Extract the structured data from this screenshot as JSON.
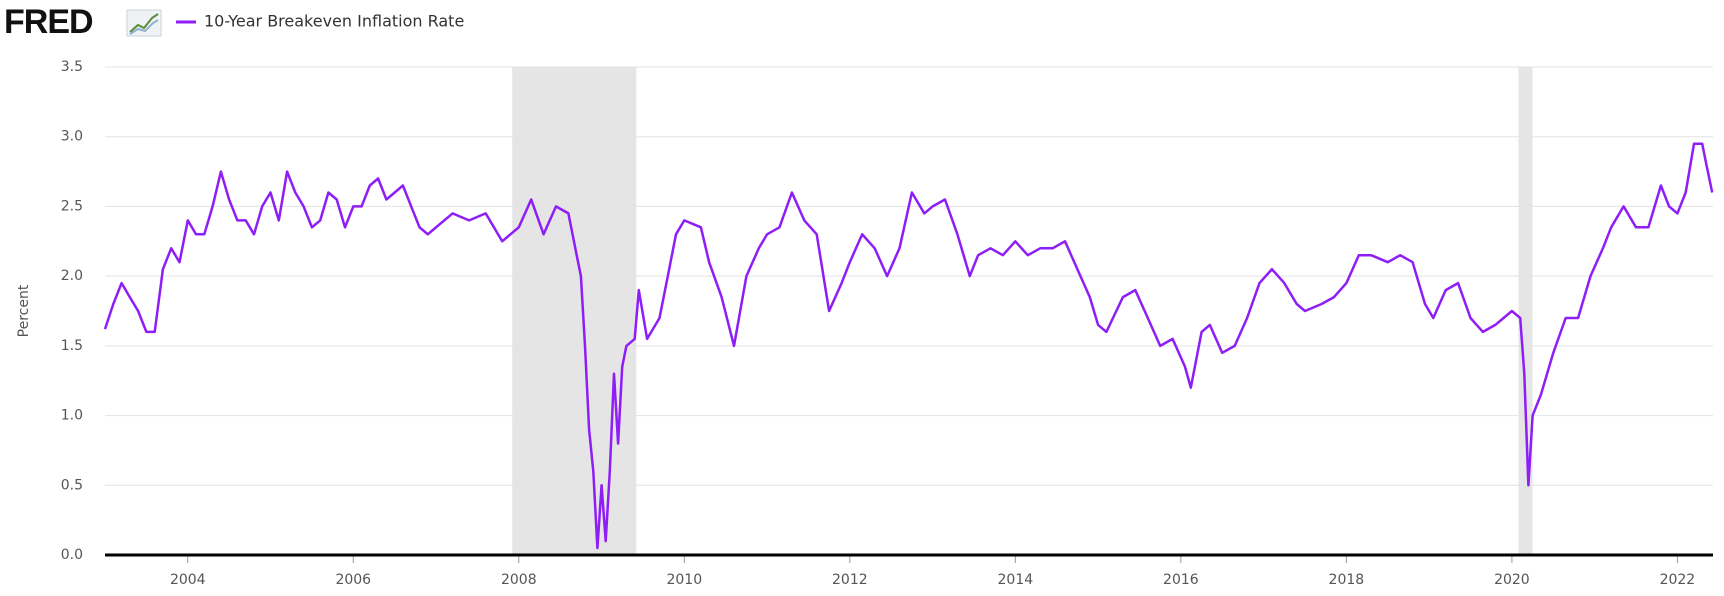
{
  "chart_data": {
    "type": "line",
    "source_logo": "FRED",
    "ylabel": "Percent",
    "x": [
      2003.0,
      2003.1,
      2003.2,
      2003.3,
      2003.4,
      2003.5,
      2003.6,
      2003.7,
      2003.8,
      2003.9,
      2004.0,
      2004.1,
      2004.2,
      2004.3,
      2004.4,
      2004.5,
      2004.6,
      2004.7,
      2004.8,
      2004.9,
      2005.0,
      2005.1,
      2005.2,
      2005.3,
      2005.4,
      2005.5,
      2005.6,
      2005.7,
      2005.8,
      2005.9,
      2006.0,
      2006.1,
      2006.2,
      2006.3,
      2006.4,
      2006.5,
      2006.6,
      2006.7,
      2006.8,
      2006.9,
      2007.0,
      2007.2,
      2007.4,
      2007.6,
      2007.8,
      2008.0,
      2008.15,
      2008.3,
      2008.45,
      2008.6,
      2008.7,
      2008.75,
      2008.8,
      2008.85,
      2008.9,
      2008.95,
      2009.0,
      2009.05,
      2009.1,
      2009.15,
      2009.2,
      2009.25,
      2009.3,
      2009.4,
      2009.45,
      2009.55,
      2009.7,
      2009.8,
      2009.9,
      2010.0,
      2010.2,
      2010.3,
      2010.45,
      2010.6,
      2010.75,
      2010.9,
      2011.0,
      2011.15,
      2011.3,
      2011.45,
      2011.6,
      2011.75,
      2011.9,
      2012.0,
      2012.15,
      2012.3,
      2012.45,
      2012.6,
      2012.75,
      2012.9,
      2013.0,
      2013.15,
      2013.3,
      2013.45,
      2013.55,
      2013.7,
      2013.85,
      2014.0,
      2014.15,
      2014.3,
      2014.45,
      2014.6,
      2014.75,
      2014.9,
      2015.0,
      2015.1,
      2015.3,
      2015.45,
      2015.6,
      2015.75,
      2015.9,
      2016.05,
      2016.12,
      2016.25,
      2016.35,
      2016.5,
      2016.65,
      2016.8,
      2016.95,
      2017.1,
      2017.25,
      2017.4,
      2017.5,
      2017.7,
      2017.85,
      2018.0,
      2018.15,
      2018.3,
      2018.5,
      2018.65,
      2018.8,
      2018.95,
      2019.05,
      2019.2,
      2019.35,
      2019.5,
      2019.65,
      2019.8,
      2019.9,
      2020.0,
      2020.1,
      2020.15,
      2020.2,
      2020.25,
      2020.35,
      2020.5,
      2020.65,
      2020.8,
      2020.95,
      2021.1,
      2021.2,
      2021.35,
      2021.5,
      2021.65,
      2021.8,
      2021.9,
      2022.0,
      2022.1,
      2022.2,
      2022.3,
      2022.35,
      2022.42
    ],
    "series": [
      {
        "name": "10-Year Breakeven Inflation Rate",
        "color": "#8f1df6",
        "values": [
          1.62,
          1.8,
          1.95,
          1.85,
          1.75,
          1.6,
          1.6,
          2.05,
          2.2,
          2.1,
          2.4,
          2.3,
          2.3,
          2.5,
          2.75,
          2.55,
          2.4,
          2.4,
          2.3,
          2.5,
          2.6,
          2.4,
          2.75,
          2.6,
          2.5,
          2.35,
          2.4,
          2.6,
          2.55,
          2.35,
          2.5,
          2.5,
          2.65,
          2.7,
          2.55,
          2.6,
          2.65,
          2.5,
          2.35,
          2.3,
          2.35,
          2.45,
          2.4,
          2.45,
          2.25,
          2.35,
          2.55,
          2.3,
          2.5,
          2.45,
          2.15,
          2.0,
          1.5,
          0.9,
          0.6,
          0.05,
          0.5,
          0.1,
          0.6,
          1.3,
          0.8,
          1.35,
          1.5,
          1.55,
          1.9,
          1.55,
          1.7,
          2.0,
          2.3,
          2.4,
          2.35,
          2.1,
          1.85,
          1.5,
          2.0,
          2.2,
          2.3,
          2.35,
          2.6,
          2.4,
          2.3,
          1.75,
          1.95,
          2.1,
          2.3,
          2.2,
          2.0,
          2.2,
          2.6,
          2.45,
          2.5,
          2.55,
          2.3,
          2.0,
          2.15,
          2.2,
          2.15,
          2.25,
          2.15,
          2.2,
          2.2,
          2.25,
          2.05,
          1.85,
          1.65,
          1.6,
          1.85,
          1.9,
          1.7,
          1.5,
          1.55,
          1.35,
          1.2,
          1.6,
          1.65,
          1.45,
          1.5,
          1.7,
          1.95,
          2.05,
          1.95,
          1.8,
          1.75,
          1.8,
          1.85,
          1.95,
          2.15,
          2.15,
          2.1,
          2.15,
          2.1,
          1.8,
          1.7,
          1.9,
          1.95,
          1.7,
          1.6,
          1.65,
          1.7,
          1.75,
          1.7,
          1.3,
          0.5,
          1.0,
          1.15,
          1.45,
          1.7,
          1.7,
          2.0,
          2.2,
          2.35,
          2.5,
          2.35,
          2.35,
          2.65,
          2.5,
          2.45,
          2.6,
          2.95,
          2.95,
          2.8,
          2.6
        ]
      }
    ],
    "recessions": [
      [
        2007.92,
        2009.42
      ],
      [
        2020.08,
        2020.25
      ]
    ],
    "xlim": [
      2003.0,
      2022.43
    ],
    "xticks": [
      2004,
      2006,
      2008,
      2010,
      2012,
      2014,
      2016,
      2018,
      2020,
      2022
    ],
    "ylim": [
      0,
      3.5
    ],
    "yticks": [
      {
        "value": 0,
        "label": "0.0"
      },
      0.5,
      {
        "value": 1,
        "label": "1.0"
      },
      1.5,
      {
        "value": 2,
        "label": "2.0"
      },
      2.5,
      {
        "value": 3,
        "label": "3.0"
      },
      3.5
    ],
    "grid": true
  }
}
